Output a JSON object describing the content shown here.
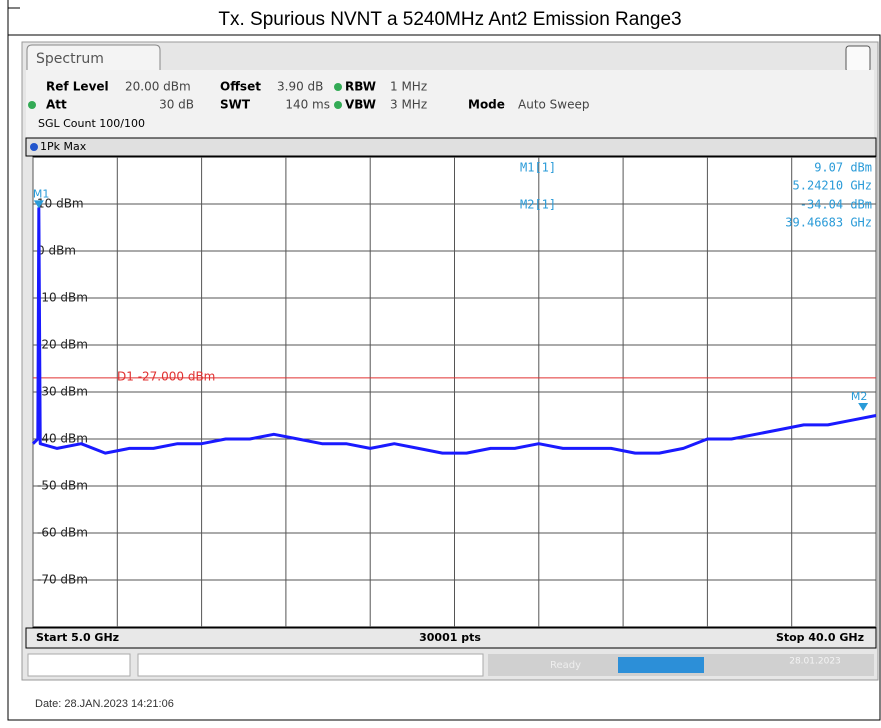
{
  "title": "Tx. Spurious NVNT a 5240MHz Ant2 Emission Range3",
  "window": {
    "tab": "Spectrum"
  },
  "settings": {
    "row1": [
      {
        "label": "Ref Level",
        "value": "20.00 dBm"
      },
      {
        "label": "Offset",
        "value": "3.90 dB"
      },
      {
        "label": "RBW",
        "value": "1 MHz"
      }
    ],
    "row2": [
      {
        "label": "Att",
        "value": "30 dB"
      },
      {
        "label": "SWT",
        "value": "140 ms"
      },
      {
        "label": "VBW",
        "value": "3 MHz"
      },
      {
        "label": "Mode",
        "value": "Auto Sweep"
      }
    ],
    "count": "SGL Count 100/100"
  },
  "chart_data": {
    "type": "line",
    "x": [
      5.0,
      5.2,
      5.2421,
      5.3,
      6,
      7,
      8,
      9,
      10,
      11,
      12,
      13,
      14,
      15,
      16,
      17,
      18,
      19,
      20,
      21,
      22,
      23,
      24,
      25,
      26,
      27,
      28,
      29,
      30,
      31,
      32,
      33,
      34,
      35,
      36,
      37,
      38,
      39,
      40
    ],
    "series": [
      {
        "name": "1Pk Max",
        "color": "#1a1aff",
        "values": [
          -41,
          -40,
          9.07,
          -41,
          -42,
          -41,
          -43,
          -42,
          -42,
          -41,
          -41,
          -40,
          -40,
          -39,
          -40,
          -41,
          -41,
          -42,
          -41,
          -42,
          -43,
          -43,
          -42,
          -42,
          -41,
          -42,
          -42,
          -42,
          -43,
          -43,
          -42,
          -40,
          -40,
          -39,
          -38,
          -37,
          -37,
          -36,
          -35
        ]
      }
    ],
    "xlim": [
      5,
      40
    ],
    "xticks": [
      5,
      8.5,
      12,
      15.5,
      19,
      22.5,
      26,
      29.5,
      33,
      36.5,
      40
    ],
    "ylim": [
      -80,
      20
    ],
    "yticks": [
      {
        "value": 10,
        "label": "10 dBm"
      },
      {
        "value": 0,
        "label": "0 dBm"
      },
      {
        "value": -10,
        "label": "-10 dBm"
      },
      {
        "value": -20,
        "label": "-20 dBm"
      },
      {
        "value": -30,
        "label": "-30 dBm"
      },
      {
        "value": -40,
        "label": "-40 dBm"
      },
      {
        "value": -50,
        "label": "-50 dBm"
      },
      {
        "value": -60,
        "label": "-60 dBm"
      },
      {
        "value": -70,
        "label": "-70 dBm"
      }
    ],
    "grid": true,
    "display_line": {
      "value": -27,
      "label": "D1 -27.000 dBm",
      "color": "#e03030"
    },
    "markers": [
      {
        "tag": "M1",
        "name": "M1[1]",
        "x": 5.2421,
        "x_label": "5.24210 GHz",
        "y": 9.07,
        "y_label": "9.07 dBm"
      },
      {
        "tag": "M2",
        "name": "M2[1]",
        "x": 39.46683,
        "x_label": "39.46683 GHz",
        "y": -34.04,
        "y_label": "-34.04 dBm"
      }
    ],
    "footer": {
      "start": "Start 5.0 GHz",
      "points": "30001 pts",
      "stop": "Stop 40.0 GHz"
    }
  },
  "status": {
    "state": "Ready",
    "date": "28.01.2023"
  },
  "date_line": "Date: 28.JAN.2023 14:21:06"
}
